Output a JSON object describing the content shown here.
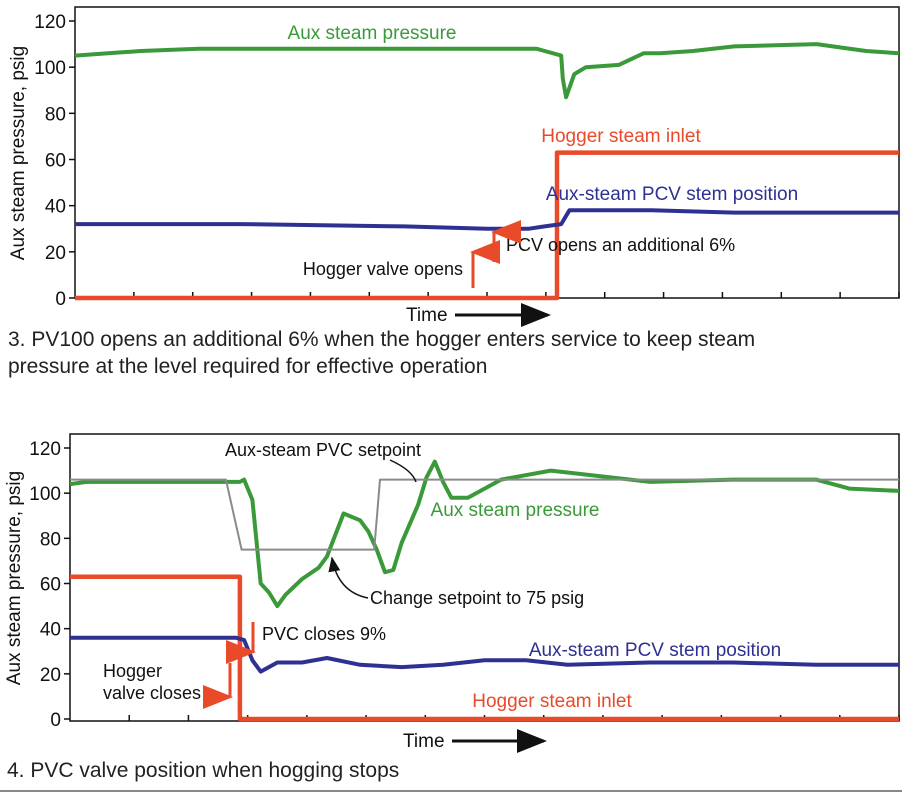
{
  "chart_data": [
    {
      "type": "line",
      "ylabel": "Aux steam pressure, psig",
      "xlabel": "Time",
      "ylim": [
        0,
        120
      ],
      "yticks": [
        0,
        20,
        40,
        60,
        80,
        100,
        120
      ],
      "xlim": [
        0,
        100
      ],
      "grid": false,
      "caption": "3. PV100 opens an additional 6% when the hogger enters service to keep steam pressure at the level required for effective operation",
      "series": [
        {
          "name": "Aux steam pressure",
          "color": "#3a9a3a",
          "x": [
            0,
            4,
            8,
            15,
            30,
            50,
            56,
            57,
            59,
            59.2,
            59.6,
            60.6,
            62,
            66,
            69,
            71,
            75,
            80,
            90,
            96,
            100
          ],
          "y": [
            105,
            106,
            107,
            108,
            108,
            108,
            108,
            107,
            105,
            95,
            87,
            97,
            100,
            101,
            106,
            106,
            107,
            109,
            110,
            107,
            106
          ]
        },
        {
          "name": "Hogger steam inlet",
          "color": "#e84a2a",
          "x": [
            0,
            58.5,
            58.5,
            100
          ],
          "y": [
            0,
            0,
            63,
            63
          ]
        },
        {
          "name": "Aux-steam PCV stem position",
          "color": "#2e3192",
          "x": [
            0,
            20,
            40,
            50,
            55,
            57,
            59,
            60,
            61,
            70,
            80,
            90,
            100
          ],
          "y": [
            32,
            32,
            31,
            30,
            30,
            31,
            32,
            38,
            38,
            38,
            37,
            37,
            37
          ]
        }
      ],
      "annotations": [
        {
          "text": "Hogger valve opens",
          "x": 57.4,
          "y": 12
        },
        {
          "text": "PCV opens an additional 6%",
          "x": 60.2,
          "y": 24
        }
      ]
    },
    {
      "type": "line",
      "ylabel": "Aux steam pressure, psig",
      "xlabel": "Time",
      "ylim": [
        0,
        120
      ],
      "yticks": [
        0,
        20,
        40,
        60,
        80,
        100,
        120
      ],
      "xlim": [
        0,
        100
      ],
      "grid": false,
      "caption": "4. PVC valve position when hogging stops",
      "series": [
        {
          "name": "Aux steam pressure",
          "color": "#3a9a3a",
          "x": [
            0,
            2,
            10,
            20,
            18.5,
            20.5,
            21,
            22,
            23,
            24,
            25,
            26,
            28,
            30,
            31,
            33,
            35,
            36,
            37,
            38,
            39,
            40,
            42,
            43,
            44,
            45,
            46,
            48,
            52,
            58,
            70,
            80,
            90,
            94,
            100
          ],
          "y": [
            104,
            105,
            105,
            105,
            105,
            105,
            106,
            97,
            60,
            56,
            50,
            55,
            62,
            67,
            72,
            91,
            88,
            83,
            75,
            65,
            66,
            78,
            95,
            107,
            114,
            105,
            98,
            98,
            106,
            110,
            105,
            106,
            106,
            102,
            101
          ]
        },
        {
          "name": "Aux-steam PVC setpoint",
          "color": "#8a8a8a",
          "x": [
            0,
            18.8,
            20.7,
            36.7,
            37.4,
            100
          ],
          "y": [
            106,
            106,
            75,
            75,
            106,
            106
          ]
        },
        {
          "name": "Hogger steam inlet",
          "color": "#e84a2a",
          "x": [
            0,
            20.5,
            20.5,
            100
          ],
          "y": [
            63,
            63,
            0,
            0
          ]
        },
        {
          "name": "Aux-steam PCV stem position",
          "color": "#2e3192",
          "x": [
            0,
            19,
            20,
            21,
            22,
            23,
            25,
            28,
            31,
            35,
            40,
            45,
            50,
            55,
            60,
            70,
            80,
            90,
            100
          ],
          "y": [
            36,
            36,
            36,
            35,
            26,
            21,
            25,
            25,
            27,
            24,
            23,
            24,
            26,
            26,
            24,
            25,
            25,
            24,
            24
          ]
        }
      ],
      "annotations": [
        {
          "text": "Aux-steam PVC setpoint"
        },
        {
          "text": "Change setpoint to 75 psig"
        },
        {
          "text": "PVC closes 9%"
        },
        {
          "text": "Hogger"
        },
        {
          "text": "valve closes"
        }
      ]
    }
  ]
}
